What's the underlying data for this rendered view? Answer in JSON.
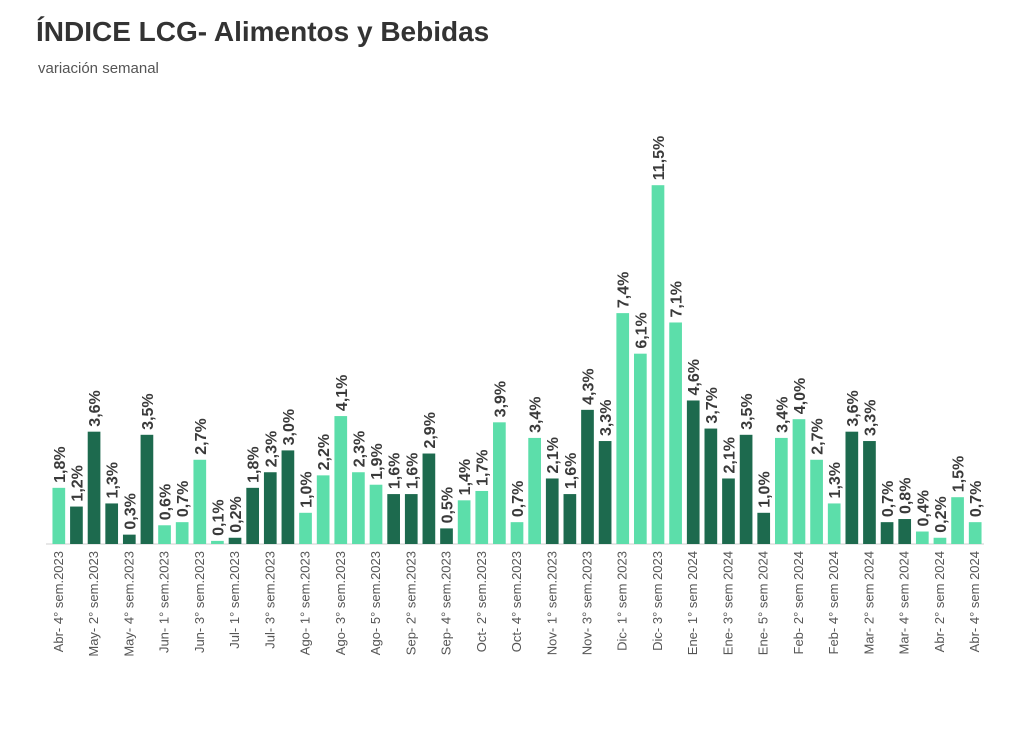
{
  "chart_data": {
    "type": "bar",
    "title": "ÍNDICE LCG- Alimentos y Bebidas",
    "subtitle": "variación semanal",
    "xlabel": "",
    "ylabel": "",
    "ylim": [
      0,
      12
    ],
    "grid": false,
    "colors": {
      "light": "#5cdeaa",
      "dark": "#1d6a4e"
    },
    "categories": [
      "Abr- 4° sem.2023",
      "",
      "May- 2° sem.2023",
      "",
      "May- 4° sem.2023",
      "",
      "Jun- 1° sem.2023",
      "",
      "Jun- 3° sem.2023",
      "",
      "Jul- 1° sem.2023",
      "",
      "Jul- 3° sem.2023",
      "",
      "Ago- 1° sem.2023",
      "",
      "Ago- 3° sem.2023",
      "",
      "Ago- 5° sem.2023",
      "",
      "Sep- 2° sem.2023",
      "",
      "Sep- 4° sem.2023",
      "",
      "Oct- 2° sem.2023",
      "",
      "Oct- 4° sem.2023",
      "",
      "Nov- 1° sem.2023",
      "",
      "Nov- 3° sem.2023",
      "",
      "Dic- 1° sem 2023",
      "",
      "Dic- 3° sem 2023",
      "",
      "Ene- 1° sem 2024",
      "",
      "Ene- 3° sem 2024",
      "",
      "Ene- 5° sem 2024",
      "",
      "Feb- 2° sem 2024",
      "",
      "Feb- 4° sem 2024",
      "",
      "Mar- 2° sem 2024",
      "",
      "Mar- 4° sem 2024",
      "",
      "Abr- 2° sem 2024",
      "",
      "Abr- 4° sem 2024"
    ],
    "values": [
      1.8,
      1.2,
      3.6,
      1.3,
      0.3,
      3.5,
      0.6,
      0.7,
      2.7,
      0.1,
      0.2,
      1.8,
      2.3,
      3.0,
      1.0,
      2.2,
      4.1,
      2.3,
      1.9,
      1.6,
      1.6,
      2.9,
      0.5,
      1.4,
      1.7,
      3.9,
      0.7,
      3.4,
      2.1,
      1.6,
      4.3,
      3.3,
      7.4,
      6.1,
      11.5,
      7.1,
      4.6,
      3.7,
      2.1,
      3.5,
      1.0,
      3.4,
      4.0,
      2.7,
      1.3,
      3.6,
      3.3,
      0.7,
      0.8,
      0.4,
      0.2,
      1.5,
      0.7
    ],
    "labels": [
      "1,8%",
      "1,2%",
      "3,6%",
      "1,3%",
      "0,3%",
      "3,5%",
      "0,6%",
      "0,7%",
      "2,7%",
      "0,1%",
      "0,2%",
      "1,8%",
      "2,3%",
      "3,0%",
      "1,0%",
      "2,2%",
      "4,1%",
      "2,3%",
      "1,9%",
      "1,6%",
      "1,6%",
      "2,9%",
      "0,5%",
      "1,4%",
      "1,7%",
      "3,9%",
      "0,7%",
      "3,4%",
      "2,1%",
      "1,6%",
      "4,3%",
      "3,3%",
      "7,4%",
      "6,1%",
      "11,5%",
      "7,1%",
      "4,6%",
      "3,7%",
      "2,1%",
      "3,5%",
      "1,0%",
      "3,4%",
      "4,0%",
      "2,7%",
      "1,3%",
      "3,6%",
      "3,3%",
      "0,7%",
      "0,8%",
      "0,4%",
      "0,2%",
      "1,5%",
      "0,7%"
    ],
    "shades": [
      "light",
      "dark",
      "dark",
      "dark",
      "dark",
      "dark",
      "light",
      "light",
      "light",
      "light",
      "dark",
      "dark",
      "dark",
      "dark",
      "light",
      "light",
      "light",
      "light",
      "light",
      "dark",
      "dark",
      "dark",
      "dark",
      "light",
      "light",
      "light",
      "light",
      "light",
      "dark",
      "dark",
      "dark",
      "dark",
      "light",
      "light",
      "light",
      "light",
      "dark",
      "dark",
      "dark",
      "dark",
      "dark",
      "light",
      "light",
      "light",
      "light",
      "dark",
      "dark",
      "dark",
      "dark",
      "light",
      "light",
      "light",
      "light"
    ]
  }
}
